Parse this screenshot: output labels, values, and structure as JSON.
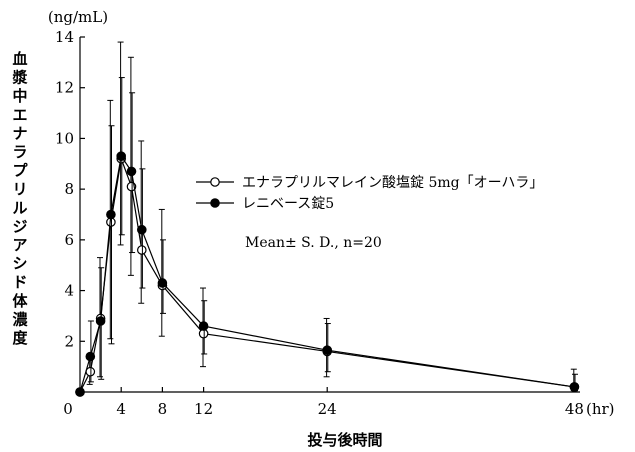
{
  "chart_data": {
    "type": "line",
    "title": "",
    "ylabel": "血漿中エナラプリルジアシド体濃度",
    "yunit": "(ng/mL)",
    "xlabel": "投与後時間",
    "xunit": "(hr)",
    "xlim": [
      0,
      48
    ],
    "ylim": [
      0,
      14
    ],
    "xticks": [
      0,
      4,
      8,
      12,
      24,
      48
    ],
    "xtick_labels": [
      "0",
      "4",
      "8",
      "12",
      "24",
      "48"
    ],
    "yticks": [
      2,
      4,
      6,
      8,
      10,
      12,
      14
    ],
    "ytick_labels": [
      "2",
      "4",
      "6",
      "8",
      "10",
      "12",
      "14"
    ],
    "axis_break": {
      "from_x": 12,
      "note": "x-axis scale compressed after 12 hr"
    },
    "grid": false,
    "legend_position": "right-middle",
    "annotation": "Mean± S. D., n=20",
    "x": [
      0,
      1,
      2,
      3,
      4,
      5,
      6,
      8,
      12,
      24,
      48
    ],
    "series": [
      {
        "name": "エナラプリルマレイン酸塩錠 5mg「オーハラ」",
        "marker": "open-circle",
        "values": [
          0,
          0.8,
          2.9,
          6.7,
          9.2,
          8.1,
          5.6,
          4.2,
          2.3,
          1.6,
          0.2
        ],
        "sd_upper": [
          0,
          1.5,
          5.3,
          11.5,
          13.8,
          13.2,
          9.9,
          7.2,
          4.1,
          2.9,
          0.9
        ],
        "sd_lower": [
          0,
          0.3,
          0.6,
          2.1,
          5.8,
          4.6,
          3.5,
          2.2,
          1.0,
          0.6,
          0.05
        ]
      },
      {
        "name": "レニベース錠5",
        "marker": "filled-circle",
        "values": [
          0,
          1.4,
          2.8,
          7.0,
          9.3,
          8.7,
          6.4,
          4.3,
          2.6,
          1.65,
          0.2
        ],
        "sd_upper": [
          0,
          2.8,
          4.9,
          10.5,
          12.4,
          11.8,
          8.8,
          6.0,
          3.6,
          2.7,
          0.7
        ],
        "sd_lower": [
          0,
          0.4,
          0.5,
          1.9,
          6.2,
          5.5,
          4.1,
          3.1,
          1.5,
          0.8,
          0.05
        ]
      }
    ]
  }
}
